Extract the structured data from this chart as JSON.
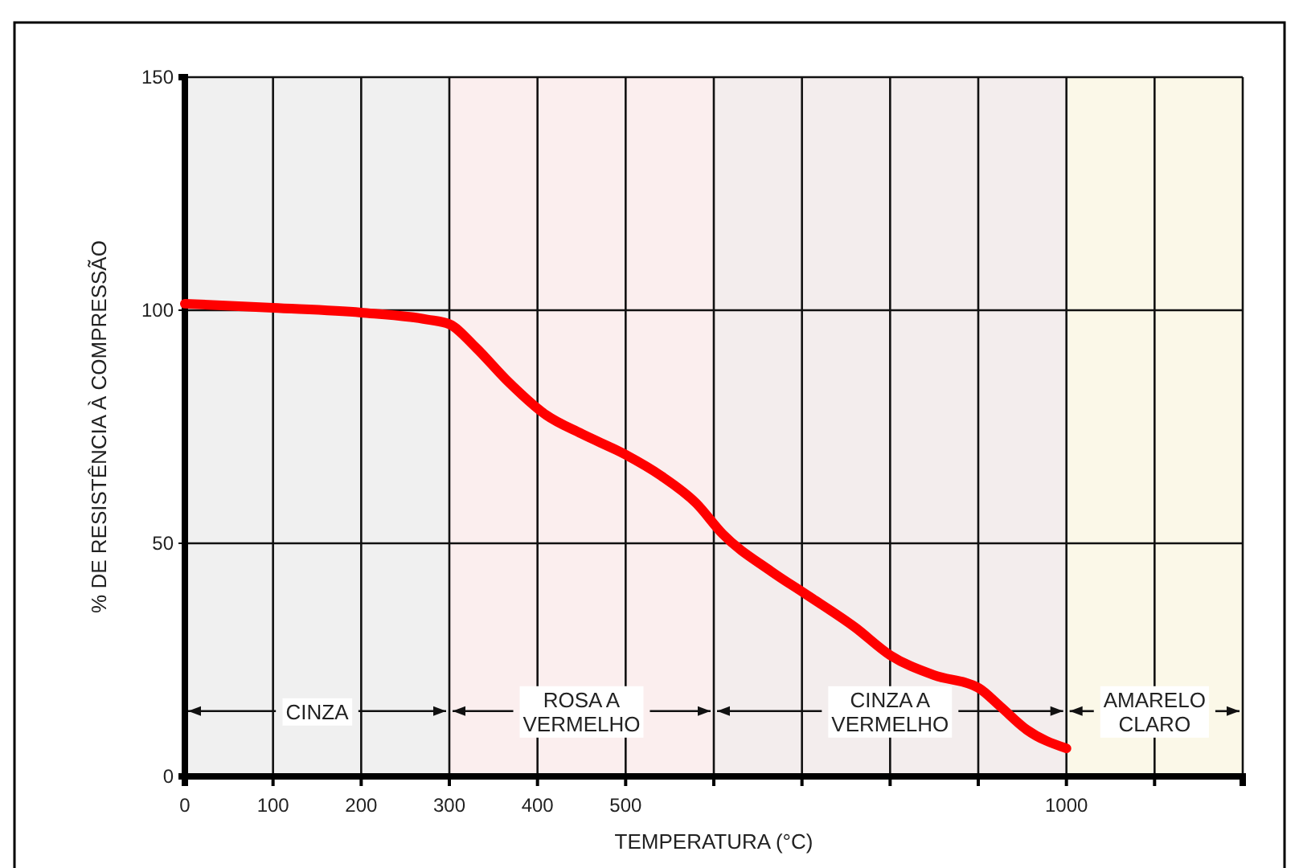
{
  "chart_data": {
    "type": "line",
    "xlabel": "TEMPERATURA (°C)",
    "ylabel": "% DE RESISTÊNCIA À COMPRESSÃO",
    "x": [
      0,
      100,
      200,
      275,
      300,
      330,
      365,
      410,
      450,
      500,
      540,
      580,
      610,
      665,
      705,
      760,
      800,
      850,
      900,
      925,
      955,
      1000
    ],
    "series": [
      {
        "color": "#ff0000",
        "values": [
          101.4,
          100.5,
          99.5,
          98,
          97,
          92,
          85,
          77.5,
          73.5,
          69,
          64.5,
          58.6,
          52,
          44,
          39,
          32,
          26,
          21.7,
          19,
          15,
          10,
          6
        ]
      }
    ],
    "xlim": [
      0,
      1200
    ],
    "xticks": [
      0,
      100,
      200,
      300,
      400,
      500,
      {
        "value": 600,
        "label": null
      },
      {
        "value": 700,
        "label": null
      },
      {
        "value": 800,
        "label": null
      },
      {
        "value": 900,
        "label": null
      },
      1000,
      {
        "value": 1100,
        "label": null
      },
      {
        "value": 1200,
        "label": null
      }
    ],
    "ylim": [
      0,
      150
    ],
    "yticks": [
      0,
      50,
      100,
      150
    ],
    "grid": true,
    "marker": "none",
    "line_style": "solid",
    "bands": [
      {
        "axis": "x",
        "from": 0,
        "to": 300,
        "label": "CINZA",
        "color": "#f0f0f0"
      },
      {
        "axis": "x",
        "from": 300,
        "to": 600,
        "label": "ROSA A VERMELHO",
        "color": "#fbeeee"
      },
      {
        "axis": "x",
        "from": 600,
        "to": 1000,
        "label": "CINZA A VERMELHO",
        "color": "#f3eded"
      },
      {
        "axis": "x",
        "from": 1000,
        "to": 1200,
        "label": "AMARELO CLARO",
        "color": "#fbf8e8"
      }
    ]
  }
}
